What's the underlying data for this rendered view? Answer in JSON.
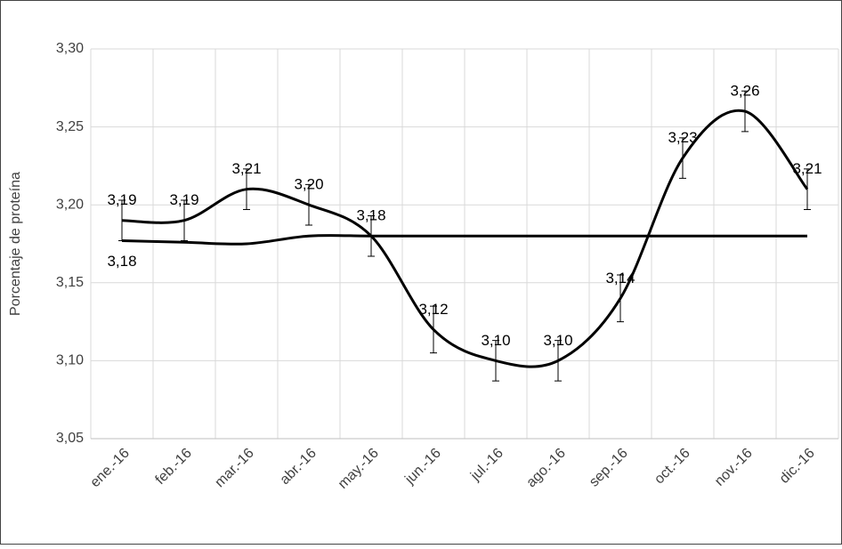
{
  "chart_data": {
    "type": "line",
    "y_label": "Porcentaje de proteína",
    "categories": [
      "ene.-16",
      "feb.-16",
      "mar.-16",
      "abr.-16",
      "may.-16",
      "jun.-16",
      "jul.-16",
      "ago.-16",
      "sep.-16",
      "oct.-16",
      "nov.-16",
      "dic.-16"
    ],
    "series": [
      {
        "color": "#000000",
        "smooth": true,
        "values": [
          3.19,
          3.19,
          3.21,
          3.2,
          3.18,
          3.12,
          3.1,
          3.1,
          3.14,
          3.23,
          3.26,
          3.21
        ],
        "value_labels": [
          "3,19",
          "3,19",
          "3,21",
          "3,20",
          "3,18",
          "3,12",
          "3,10",
          "3,10",
          "3,14",
          "3,23",
          "3,26",
          "3,21"
        ],
        "errors": [
          0.013,
          0.013,
          0.013,
          0.013,
          0.013,
          0.015,
          0.013,
          0.013,
          0.015,
          0.013,
          0.013,
          0.013
        ],
        "label_position": "above"
      },
      {
        "color": "#000000",
        "smooth": true,
        "values": [
          3.177,
          3.176,
          3.175,
          3.18,
          3.18,
          3.18,
          3.18,
          3.18,
          3.18,
          3.18,
          3.18,
          3.18
        ],
        "value_labels": [
          "3,18",
          null,
          null,
          null,
          null,
          null,
          null,
          null,
          null,
          null,
          null,
          null
        ],
        "label_position": "below"
      }
    ],
    "ylim": [
      3.05,
      3.3
    ],
    "yticks": [
      {
        "value": 3.05,
        "label": "3,05"
      },
      {
        "value": 3.1,
        "label": "3,10"
      },
      {
        "value": 3.15,
        "label": "3,15"
      },
      {
        "value": 3.2,
        "label": "3,20"
      },
      {
        "value": 3.25,
        "label": "3,25"
      },
      {
        "value": 3.3,
        "label": "3,30"
      }
    ],
    "grid": true
  }
}
